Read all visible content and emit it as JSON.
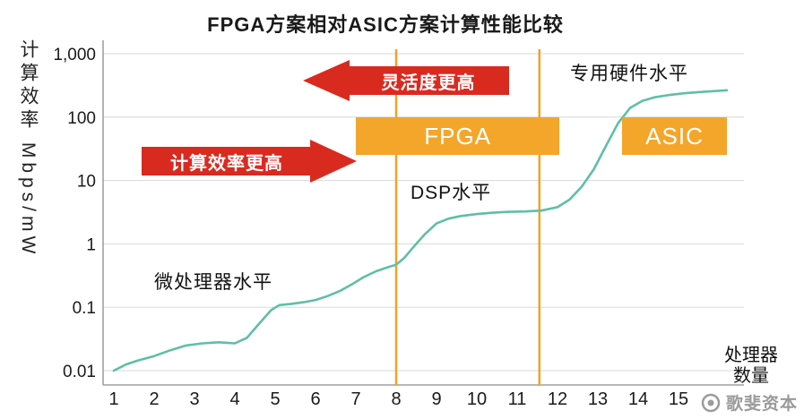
{
  "title": "FPGA方案相对ASIC方案计算性能比较",
  "annotations": {
    "micro": "微处理器水平",
    "dsp": "DSP水平",
    "dedicated": "专用硬件水平"
  },
  "arrows": {
    "left_label": "灵活度更高",
    "right_label": "计算效率更高"
  },
  "watermark": {
    "text": "歌斐资本"
  },
  "chart_data": {
    "type": "line",
    "title": "FPGA方案相对ASIC方案计算性能比较",
    "xlabel": "处理器数量",
    "xlabel_line1": "处理器",
    "xlabel_line2": "数量",
    "ylabel": "计算效率 Mbps/mW",
    "y_scale": "log",
    "ylim": [
      0.01,
      1000
    ],
    "xlim": [
      1,
      16.2
    ],
    "grid": true,
    "legend": "none",
    "yticks": [
      "1,000",
      "100",
      "10",
      "1",
      "0.1",
      "0.01"
    ],
    "ytick_values": [
      1000,
      100,
      10,
      1,
      0.1,
      0.01
    ],
    "xticks": [
      1,
      2,
      3,
      4,
      5,
      6,
      7,
      8,
      9,
      10,
      11,
      12,
      13,
      14,
      15
    ],
    "points": [
      [
        1,
        0.01
      ],
      [
        1.3,
        0.0125
      ],
      [
        1.6,
        0.0145
      ],
      [
        2,
        0.017
      ],
      [
        2.4,
        0.021
      ],
      [
        2.8,
        0.025
      ],
      [
        3.2,
        0.027
      ],
      [
        3.6,
        0.028
      ],
      [
        4,
        0.027
      ],
      [
        4.3,
        0.033
      ],
      [
        4.6,
        0.055
      ],
      [
        4.9,
        0.09
      ],
      [
        5.1,
        0.108
      ],
      [
        5.4,
        0.113
      ],
      [
        5.7,
        0.12
      ],
      [
        6,
        0.13
      ],
      [
        6.3,
        0.15
      ],
      [
        6.6,
        0.18
      ],
      [
        6.9,
        0.23
      ],
      [
        7.2,
        0.3
      ],
      [
        7.5,
        0.37
      ],
      [
        7.8,
        0.43
      ],
      [
        8,
        0.47
      ],
      [
        8.2,
        0.6
      ],
      [
        8.4,
        0.85
      ],
      [
        8.7,
        1.4
      ],
      [
        9,
        2.1
      ],
      [
        9.3,
        2.5
      ],
      [
        9.6,
        2.75
      ],
      [
        10,
        2.95
      ],
      [
        10.4,
        3.1
      ],
      [
        10.8,
        3.2
      ],
      [
        11.2,
        3.25
      ],
      [
        11.6,
        3.35
      ],
      [
        12,
        3.8
      ],
      [
        12.3,
        5
      ],
      [
        12.6,
        8
      ],
      [
        12.9,
        15
      ],
      [
        13.2,
        35
      ],
      [
        13.5,
        80
      ],
      [
        13.8,
        140
      ],
      [
        14.1,
        180
      ],
      [
        14.4,
        205
      ],
      [
        14.8,
        225
      ],
      [
        15.2,
        240
      ],
      [
        15.6,
        250
      ],
      [
        16,
        260
      ],
      [
        16.2,
        265
      ]
    ],
    "vlines": [
      8,
      11.55
    ],
    "bands": [
      {
        "label": "FPGA",
        "x": [
          7,
          12.05
        ],
        "y": [
          25,
          100
        ]
      },
      {
        "label": "ASIC",
        "x": [
          13.6,
          16.2
        ],
        "y": [
          25,
          100
        ]
      }
    ],
    "colors": {
      "line": "#5fbfa6",
      "band": "#f4a62a",
      "vline": "#f0a22b",
      "arrow": "#d92a20",
      "grid": "#d9d9d9",
      "axis": "#8c8c8c",
      "text": "#1a1a1a"
    }
  }
}
